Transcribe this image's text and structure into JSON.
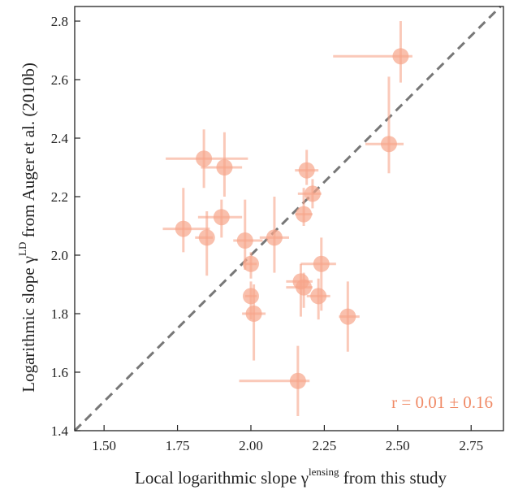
{
  "chart_data": {
    "type": "scatter",
    "xlabel": "Local logarithmic slope γ",
    "xlabel_sup": "lensing",
    "xlabel_suffix": " from this study",
    "ylabel": "Logarithmic slope γ",
    "ylabel_sup": "LD",
    "ylabel_suffix": " from Auger et al. (2010b)",
    "xlim": [
      1.4,
      2.86
    ],
    "ylim": [
      1.4,
      2.85
    ],
    "xticks": [
      1.5,
      1.75,
      2.0,
      2.25,
      2.5,
      2.75
    ],
    "xtick_labels": [
      "1.50",
      "1.75",
      "2.00",
      "2.25",
      "2.50",
      "2.75"
    ],
    "yticks": [
      1.4,
      1.6,
      1.8,
      2.0,
      2.2,
      2.4,
      2.6,
      2.8
    ],
    "ytick_labels": [
      "1.4",
      "1.6",
      "1.8",
      "2.0",
      "2.2",
      "2.4",
      "2.6",
      "2.8"
    ],
    "annotation": "r = 0.01 ± 0.16",
    "reference_line": "one-to-one",
    "grid": false,
    "colors": {
      "points": "#f7a58a",
      "reference_line": "#777777",
      "annotation": "#f08a66"
    },
    "points": [
      {
        "x": 2.51,
        "y": 2.68,
        "xerr": [
          0.23,
          0.04
        ],
        "yerr": [
          0.09,
          0.12
        ]
      },
      {
        "x": 2.47,
        "y": 2.38,
        "xerr": [
          0.08,
          0.05
        ],
        "yerr": [
          0.1,
          0.23
        ]
      },
      {
        "x": 1.84,
        "y": 2.33,
        "xerr": [
          0.13,
          0.15
        ],
        "yerr": [
          0.1,
          0.1
        ]
      },
      {
        "x": 1.91,
        "y": 2.3,
        "xerr": [
          0.08,
          0.06
        ],
        "yerr": [
          0.1,
          0.12
        ]
      },
      {
        "x": 2.19,
        "y": 2.29,
        "xerr": [
          0.04,
          0.04
        ],
        "yerr": [
          0.05,
          0.07
        ]
      },
      {
        "x": 2.21,
        "y": 2.21,
        "xerr": [
          0.05,
          0.03
        ],
        "yerr": [
          0.05,
          0.05
        ]
      },
      {
        "x": 2.18,
        "y": 2.14,
        "xerr": [
          0.03,
          0.03
        ],
        "yerr": [
          0.04,
          0.09
        ]
      },
      {
        "x": 1.9,
        "y": 2.13,
        "xerr": [
          0.08,
          0.07
        ],
        "yerr": [
          0.07,
          0.06
        ]
      },
      {
        "x": 1.77,
        "y": 2.09,
        "xerr": [
          0.07,
          0.09
        ],
        "yerr": [
          0.08,
          0.14
        ]
      },
      {
        "x": 1.85,
        "y": 2.06,
        "xerr": [
          0.04,
          0.02
        ],
        "yerr": [
          0.13,
          0.09
        ]
      },
      {
        "x": 1.98,
        "y": 2.05,
        "xerr": [
          0.04,
          0.06
        ],
        "yerr": [
          0.1,
          0.14
        ]
      },
      {
        "x": 2.08,
        "y": 2.06,
        "xerr": [
          0.05,
          0.05
        ],
        "yerr": [
          0.12,
          0.14
        ]
      },
      {
        "x": 2.0,
        "y": 1.97,
        "xerr": [
          0.02,
          0.02
        ],
        "yerr": [
          0.05,
          0.04
        ]
      },
      {
        "x": 2.24,
        "y": 1.97,
        "xerr": [
          0.07,
          0.05
        ],
        "yerr": [
          0.16,
          0.09
        ]
      },
      {
        "x": 2.17,
        "y": 1.91,
        "xerr": [
          0.05,
          0.04
        ],
        "yerr": [
          0.12,
          0.06
        ]
      },
      {
        "x": 2.18,
        "y": 1.89,
        "xerr": [
          0.06,
          0.03
        ],
        "yerr": [
          0.07,
          0.05
        ]
      },
      {
        "x": 2.0,
        "y": 1.86,
        "xerr": [
          0.02,
          0.02
        ],
        "yerr": [
          0.08,
          0.05
        ]
      },
      {
        "x": 2.23,
        "y": 1.86,
        "xerr": [
          0.04,
          0.04
        ],
        "yerr": [
          0.08,
          0.06
        ]
      },
      {
        "x": 2.01,
        "y": 1.8,
        "xerr": [
          0.04,
          0.04
        ],
        "yerr": [
          0.16,
          0.1
        ]
      },
      {
        "x": 2.33,
        "y": 1.79,
        "xerr": [
          0.03,
          0.04
        ],
        "yerr": [
          0.12,
          0.12
        ]
      },
      {
        "x": 2.16,
        "y": 1.57,
        "xerr": [
          0.2,
          0.04
        ],
        "yerr": [
          0.12,
          0.12
        ]
      }
    ]
  }
}
